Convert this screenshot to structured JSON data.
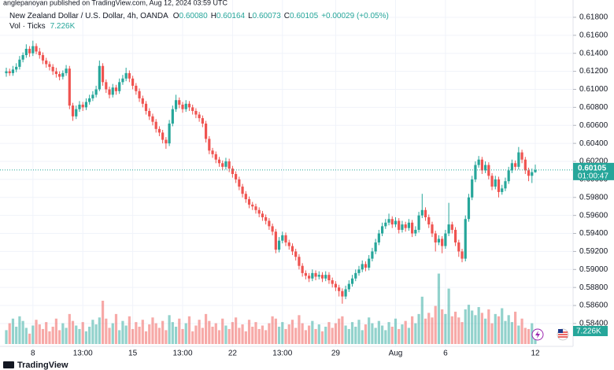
{
  "header": {
    "publisher": "anglepanoyan published on TradingView.com, Aug 12, 2024 03:59 UTC",
    "logo": "TradingView"
  },
  "chart_data": {
    "type": "candlestick",
    "title": "New Zealand Dollar / U.S. Dollar, 4h, OANDA",
    "ohlc_legend": [
      {
        "key": "O",
        "value": "0.60080"
      },
      {
        "key": "H",
        "value": "0.60164"
      },
      {
        "key": "L",
        "value": "0.60073"
      },
      {
        "key": "C",
        "value": "0.60105"
      }
    ],
    "change": "+0.00029 (+0.05%)",
    "volume_title": "Vol · Ticks",
    "volume_last": "7.226K",
    "up_color": "#26a69a",
    "down_color": "#ef5350",
    "grid": true,
    "ylim": [
      0.58146,
      0.61992
    ],
    "yticks": [
      {
        "value": 0.618,
        "label": "0.61800"
      },
      {
        "value": 0.616,
        "label": "0.61600"
      },
      {
        "value": 0.614,
        "label": "0.61400"
      },
      {
        "value": 0.612,
        "label": "0.61200"
      },
      {
        "value": 0.61,
        "label": "0.61000"
      },
      {
        "value": 0.608,
        "label": "0.60800"
      },
      {
        "value": 0.606,
        "label": "0.60600"
      },
      {
        "value": 0.604,
        "label": "0.60400"
      },
      {
        "value": 0.602,
        "label": "0.60200"
      },
      {
        "value": 0.6,
        "label": "0.60000"
      },
      {
        "value": 0.598,
        "label": "0.59800"
      },
      {
        "value": 0.596,
        "label": "0.59600"
      },
      {
        "value": 0.594,
        "label": "0.59400"
      },
      {
        "value": 0.592,
        "label": "0.59200"
      },
      {
        "value": 0.59,
        "label": "0.59000"
      },
      {
        "value": 0.588,
        "label": "0.58800"
      },
      {
        "value": 0.586,
        "label": "0.58600"
      },
      {
        "value": 0.584,
        "label": "0.58400"
      }
    ],
    "volume_lim": [
      0,
      300000
    ],
    "last_price": {
      "value": 0.60105,
      "label": "0.60105"
    },
    "countdown": "01:00:47",
    "categories": [
      null,
      null,
      null,
      null,
      null,
      null,
      null,
      null,
      "8",
      null,
      null,
      null,
      null,
      null,
      null,
      null,
      null,
      null,
      null,
      null,
      null,
      null,
      null,
      "13:00",
      null,
      null,
      null,
      null,
      null,
      null,
      null,
      null,
      null,
      null,
      null,
      null,
      null,
      null,
      "15",
      null,
      null,
      null,
      null,
      null,
      null,
      null,
      null,
      null,
      null,
      null,
      null,
      null,
      null,
      "13:00",
      null,
      null,
      null,
      null,
      null,
      null,
      null,
      null,
      null,
      null,
      null,
      null,
      null,
      null,
      "22",
      null,
      null,
      null,
      null,
      null,
      null,
      null,
      null,
      null,
      null,
      null,
      null,
      null,
      null,
      "13:00",
      null,
      null,
      null,
      null,
      null,
      null,
      null,
      null,
      null,
      null,
      null,
      null,
      null,
      null,
      null,
      "29",
      null,
      null,
      null,
      null,
      null,
      null,
      null,
      null,
      null,
      null,
      null,
      null,
      null,
      null,
      null,
      null,
      null,
      "Aug",
      null,
      null,
      null,
      null,
      null,
      null,
      null,
      null,
      null,
      null,
      null,
      null,
      null,
      null,
      "6",
      null,
      null,
      null,
      null,
      null,
      null,
      null,
      null,
      null,
      null,
      null,
      null,
      null,
      null,
      null,
      null,
      null,
      null,
      null,
      null,
      null,
      null,
      null,
      null,
      null,
      null,
      "12"
    ],
    "open": [
      0.6118,
      0.612,
      0.6118,
      0.6122,
      0.6125,
      0.6133,
      0.6138,
      0.6145,
      0.614,
      0.6148,
      0.6142,
      0.6138,
      0.6132,
      0.6128,
      0.6125,
      0.612,
      0.6117,
      0.6114,
      0.6118,
      0.6123,
      0.6082,
      0.607,
      0.6078,
      0.6083,
      0.608,
      0.6086,
      0.609,
      0.6094,
      0.61,
      0.6126,
      0.6108,
      0.61,
      0.6094,
      0.6102,
      0.6098,
      0.6108,
      0.6112,
      0.6118,
      0.6112,
      0.6104,
      0.6098,
      0.609,
      0.6084,
      0.6076,
      0.607,
      0.6064,
      0.6056,
      0.6052,
      0.6044,
      0.604,
      0.6062,
      0.6078,
      0.6088,
      0.6083,
      0.6078,
      0.6084,
      0.608,
      0.6076,
      0.6072,
      0.6068,
      0.6062,
      0.6045,
      0.6032,
      0.6028,
      0.6022,
      0.6018,
      0.6014,
      0.602,
      0.6012,
      0.6006,
      0.6,
      0.5992,
      0.5984,
      0.5978,
      0.5972,
      0.597,
      0.5966,
      0.5962,
      0.5958,
      0.5954,
      0.5948,
      0.5942,
      0.5922,
      0.5932,
      0.5938,
      0.593,
      0.5926,
      0.592,
      0.5914,
      0.5904,
      0.5896,
      0.5893,
      0.589,
      0.5896,
      0.5892,
      0.5894,
      0.589,
      0.5894,
      0.5888,
      0.5884,
      0.588,
      0.5876,
      0.587,
      0.5878,
      0.5884,
      0.589,
      0.5896,
      0.59,
      0.5906,
      0.5902,
      0.5912,
      0.592,
      0.593,
      0.594,
      0.5948,
      0.5952,
      0.5956,
      0.595,
      0.5954,
      0.5944,
      0.595,
      0.5946,
      0.5952,
      0.594,
      0.5944,
      0.596,
      0.5966,
      0.5958,
      0.595,
      0.594,
      0.593,
      0.5934,
      0.5926,
      0.594,
      0.595,
      0.5944,
      0.593,
      0.592,
      0.5912,
      0.5956,
      0.598,
      0.6,
      0.6016,
      0.6022,
      0.601,
      0.6016,
      0.6004,
      0.5992,
      0.6,
      0.5986,
      0.599,
      0.5998,
      0.601,
      0.6018,
      0.6014,
      0.603,
      0.6022,
      0.601,
      0.6004,
      0.6008
    ],
    "high": [
      0.6124,
      0.6123,
      0.6126,
      0.6129,
      0.6137,
      0.6141,
      0.615,
      0.6148,
      0.6154,
      0.6151,
      0.6146,
      0.6141,
      0.6135,
      0.6131,
      0.6128,
      0.6124,
      0.612,
      0.6121,
      0.6127,
      0.6126,
      0.6085,
      0.6082,
      0.6087,
      0.6086,
      0.609,
      0.6094,
      0.6098,
      0.6104,
      0.6132,
      0.6129,
      0.6111,
      0.6103,
      0.6106,
      0.6105,
      0.6112,
      0.6116,
      0.6124,
      0.6121,
      0.6115,
      0.6107,
      0.6101,
      0.6093,
      0.6087,
      0.6079,
      0.6073,
      0.6067,
      0.6059,
      0.6055,
      0.6047,
      0.6066,
      0.6082,
      0.6094,
      0.6091,
      0.6086,
      0.6088,
      0.6087,
      0.6083,
      0.6079,
      0.6075,
      0.6071,
      0.6065,
      0.6048,
      0.6035,
      0.6031,
      0.6025,
      0.6021,
      0.6024,
      0.6023,
      0.6015,
      0.6009,
      0.6003,
      0.5995,
      0.5987,
      0.5981,
      0.5975,
      0.5973,
      0.5969,
      0.5965,
      0.5961,
      0.5957,
      0.5951,
      0.5945,
      0.5936,
      0.5942,
      0.5941,
      0.5933,
      0.5929,
      0.5923,
      0.5917,
      0.5907,
      0.5899,
      0.5896,
      0.59,
      0.5899,
      0.5898,
      0.5897,
      0.5898,
      0.5897,
      0.5891,
      0.5887,
      0.5883,
      0.5879,
      0.5882,
      0.5888,
      0.5894,
      0.59,
      0.5904,
      0.591,
      0.5909,
      0.5916,
      0.5924,
      0.5934,
      0.5944,
      0.5952,
      0.5956,
      0.5962,
      0.5959,
      0.5958,
      0.5957,
      0.5954,
      0.5953,
      0.5956,
      0.5955,
      0.5948,
      0.5964,
      0.5984,
      0.5969,
      0.5961,
      0.5953,
      0.5943,
      0.5938,
      0.5937,
      0.5944,
      0.5974,
      0.5953,
      0.5947,
      0.5933,
      0.5923,
      0.596,
      0.5984,
      0.6004,
      0.602,
      0.6026,
      0.6025,
      0.602,
      0.6019,
      0.6007,
      0.6004,
      0.6003,
      0.5994,
      0.6002,
      0.6014,
      0.6022,
      0.6021,
      0.6036,
      0.6033,
      0.6025,
      0.6013,
      0.6012,
      0.60164
    ],
    "low": [
      0.6114,
      0.6115,
      0.6115,
      0.6119,
      0.6122,
      0.613,
      0.6135,
      0.6136,
      0.6137,
      0.6139,
      0.6134,
      0.6128,
      0.6124,
      0.6121,
      0.6116,
      0.6113,
      0.611,
      0.6111,
      0.6115,
      0.6078,
      0.6065,
      0.6067,
      0.6075,
      0.6076,
      0.6077,
      0.6083,
      0.6087,
      0.6091,
      0.6098,
      0.6104,
      0.6096,
      0.609,
      0.6091,
      0.6094,
      0.6095,
      0.6105,
      0.6109,
      0.6108,
      0.61,
      0.6094,
      0.6086,
      0.608,
      0.6072,
      0.6066,
      0.606,
      0.6052,
      0.6048,
      0.604,
      0.6034,
      0.6037,
      0.6059,
      0.6075,
      0.6079,
      0.6074,
      0.6075,
      0.6076,
      0.6072,
      0.6068,
      0.6064,
      0.6058,
      0.6041,
      0.6028,
      0.6024,
      0.6018,
      0.6014,
      0.601,
      0.6011,
      0.6008,
      0.6002,
      0.5996,
      0.5988,
      0.598,
      0.5974,
      0.5968,
      0.5966,
      0.5962,
      0.5958,
      0.5954,
      0.595,
      0.5944,
      0.5938,
      0.5918,
      0.5919,
      0.5929,
      0.5926,
      0.5922,
      0.5916,
      0.591,
      0.59,
      0.5892,
      0.5889,
      0.5886,
      0.5887,
      0.5888,
      0.5889,
      0.5886,
      0.5887,
      0.5884,
      0.588,
      0.5876,
      0.587,
      0.5862,
      0.5867,
      0.5875,
      0.5881,
      0.5887,
      0.5893,
      0.5897,
      0.5898,
      0.5899,
      0.5909,
      0.5917,
      0.5927,
      0.5937,
      0.5945,
      0.5949,
      0.5946,
      0.5947,
      0.594,
      0.5941,
      0.5942,
      0.5943,
      0.5936,
      0.5937,
      0.5941,
      0.5957,
      0.5954,
      0.5946,
      0.5936,
      0.592,
      0.5927,
      0.5918,
      0.5923,
      0.5937,
      0.594,
      0.5926,
      0.5914,
      0.5908,
      0.5909,
      0.5953,
      0.5977,
      0.5997,
      0.6013,
      0.6006,
      0.6007,
      0.6,
      0.5988,
      0.5989,
      0.598,
      0.5983,
      0.5987,
      0.5995,
      0.6007,
      0.601,
      0.6011,
      0.6018,
      0.6006,
      0.5998,
      0.5996,
      0.60073
    ],
    "close": [
      0.612,
      0.6118,
      0.6122,
      0.6125,
      0.6133,
      0.6138,
      0.6145,
      0.614,
      0.6148,
      0.6142,
      0.6138,
      0.6132,
      0.6128,
      0.6125,
      0.612,
      0.6117,
      0.6114,
      0.6118,
      0.6123,
      0.6082,
      0.607,
      0.6078,
      0.6083,
      0.608,
      0.6086,
      0.609,
      0.6094,
      0.61,
      0.6126,
      0.6108,
      0.61,
      0.6094,
      0.6102,
      0.6098,
      0.6108,
      0.6112,
      0.6118,
      0.6112,
      0.6104,
      0.6098,
      0.609,
      0.6084,
      0.6076,
      0.607,
      0.6064,
      0.6056,
      0.6052,
      0.6044,
      0.604,
      0.6062,
      0.6078,
      0.6088,
      0.6083,
      0.6078,
      0.6084,
      0.608,
      0.6076,
      0.6072,
      0.6068,
      0.6062,
      0.6045,
      0.6032,
      0.6028,
      0.6022,
      0.6018,
      0.6014,
      0.602,
      0.6012,
      0.6006,
      0.6,
      0.5992,
      0.5984,
      0.5978,
      0.5972,
      0.597,
      0.5966,
      0.5962,
      0.5958,
      0.5954,
      0.5948,
      0.5942,
      0.5922,
      0.5932,
      0.5938,
      0.593,
      0.5926,
      0.592,
      0.5914,
      0.5904,
      0.5896,
      0.5893,
      0.589,
      0.5896,
      0.5892,
      0.5894,
      0.589,
      0.5894,
      0.5888,
      0.5884,
      0.588,
      0.5876,
      0.587,
      0.5878,
      0.5884,
      0.589,
      0.5896,
      0.59,
      0.5906,
      0.5902,
      0.5912,
      0.592,
      0.593,
      0.594,
      0.5948,
      0.5952,
      0.5956,
      0.595,
      0.5954,
      0.5944,
      0.595,
      0.5946,
      0.5952,
      0.594,
      0.5944,
      0.596,
      0.5966,
      0.5958,
      0.595,
      0.594,
      0.593,
      0.5934,
      0.5926,
      0.594,
      0.595,
      0.5944,
      0.593,
      0.592,
      0.5912,
      0.5956,
      0.598,
      0.6,
      0.6016,
      0.6022,
      0.601,
      0.6016,
      0.6004,
      0.5992,
      0.6,
      0.5986,
      0.599,
      0.5998,
      0.601,
      0.6018,
      0.6014,
      0.603,
      0.6022,
      0.601,
      0.6004,
      0.6008,
      0.60105
    ],
    "volume": [
      12000,
      18000,
      22000,
      15000,
      24000,
      20000,
      14000,
      9000,
      16000,
      21000,
      17000,
      13000,
      19000,
      11000,
      15000,
      22000,
      12000,
      18000,
      14000,
      26000,
      20000,
      16000,
      13000,
      19000,
      11000,
      15000,
      21000,
      17000,
      23000,
      37500,
      22000,
      14000,
      18000,
      26000,
      12000,
      20000,
      16000,
      24000,
      13000,
      19000,
      15000,
      21000,
      11000,
      17000,
      23000,
      18000,
      14000,
      20000,
      12000,
      25000,
      19000,
      15000,
      22000,
      13000,
      18000,
      24000,
      11000,
      16000,
      21000,
      14000,
      26000,
      20000,
      15000,
      18000,
      12000,
      22000,
      16000,
      13000,
      19000,
      23000,
      14000,
      17000,
      11000,
      21000,
      15000,
      19000,
      13000,
      16000,
      12000,
      18000,
      24000,
      22000,
      15000,
      19000,
      13000,
      17000,
      21000,
      14000,
      25000,
      18000,
      12000,
      16000,
      20000,
      13000,
      17000,
      11000,
      15000,
      19000,
      14000,
      18000,
      22000,
      24000,
      16000,
      13000,
      19000,
      15000,
      21000,
      12000,
      17000,
      23000,
      18000,
      14000,
      20000,
      16000,
      12000,
      19000,
      15000,
      22000,
      13000,
      17000,
      20000,
      14000,
      24000,
      18000,
      26000,
      41000,
      22000,
      27000,
      23000,
      33000,
      61000,
      30000,
      26000,
      48000,
      24000,
      28000,
      23000,
      19000,
      30000,
      34000,
      29000,
      25000,
      32000,
      27000,
      22000,
      30000,
      18000,
      26000,
      24000,
      31000,
      20000,
      25000,
      19000,
      28000,
      16000,
      22000,
      14000,
      13000,
      18000,
      7226
    ]
  }
}
